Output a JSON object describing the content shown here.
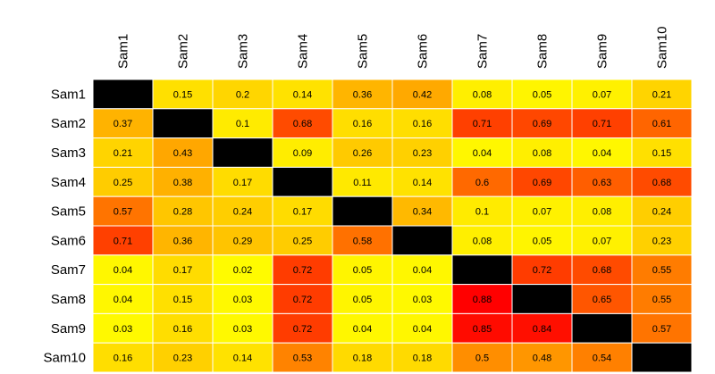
{
  "chart_data": {
    "type": "heatmap",
    "title": "",
    "xlabel": "",
    "ylabel": "",
    "columns": [
      "Sam1",
      "Sam2",
      "Sam3",
      "Sam4",
      "Sam5",
      "Sam6",
      "Sam7",
      "Sam8",
      "Sam9",
      "Sam10"
    ],
    "rows": [
      "Sam1",
      "Sam2",
      "Sam3",
      "Sam4",
      "Sam5",
      "Sam6",
      "Sam7",
      "Sam8",
      "Sam9",
      "Sam10"
    ],
    "values": [
      [
        null,
        0.15,
        0.2,
        0.14,
        0.36,
        0.42,
        0.08,
        0.05,
        0.07,
        0.21
      ],
      [
        0.37,
        null,
        0.1,
        0.68,
        0.16,
        0.16,
        0.71,
        0.69,
        0.71,
        0.61
      ],
      [
        0.21,
        0.43,
        null,
        0.09,
        0.26,
        0.23,
        0.04,
        0.08,
        0.04,
        0.15
      ],
      [
        0.25,
        0.38,
        0.17,
        null,
        0.11,
        0.14,
        0.6,
        0.69,
        0.63,
        0.68
      ],
      [
        0.57,
        0.28,
        0.24,
        0.17,
        null,
        0.34,
        0.1,
        0.07,
        0.08,
        0.24
      ],
      [
        0.71,
        0.36,
        0.29,
        0.25,
        0.58,
        null,
        0.08,
        0.05,
        0.07,
        0.23
      ],
      [
        0.04,
        0.17,
        0.02,
        0.72,
        0.05,
        0.04,
        null,
        0.72,
        0.68,
        0.55
      ],
      [
        0.04,
        0.15,
        0.03,
        0.72,
        0.05,
        0.03,
        0.88,
        null,
        0.65,
        0.55
      ],
      [
        0.03,
        0.16,
        0.03,
        0.72,
        0.04,
        0.04,
        0.85,
        0.84,
        null,
        0.57
      ],
      [
        0.16,
        0.23,
        0.14,
        0.53,
        0.18,
        0.18,
        0.5,
        0.48,
        0.54,
        null
      ]
    ],
    "diagonal_color": "#000000",
    "color_scale": [
      "#ffff00",
      "#ffa500",
      "#ff0000"
    ],
    "value_range": [
      0,
      0.88
    ]
  }
}
